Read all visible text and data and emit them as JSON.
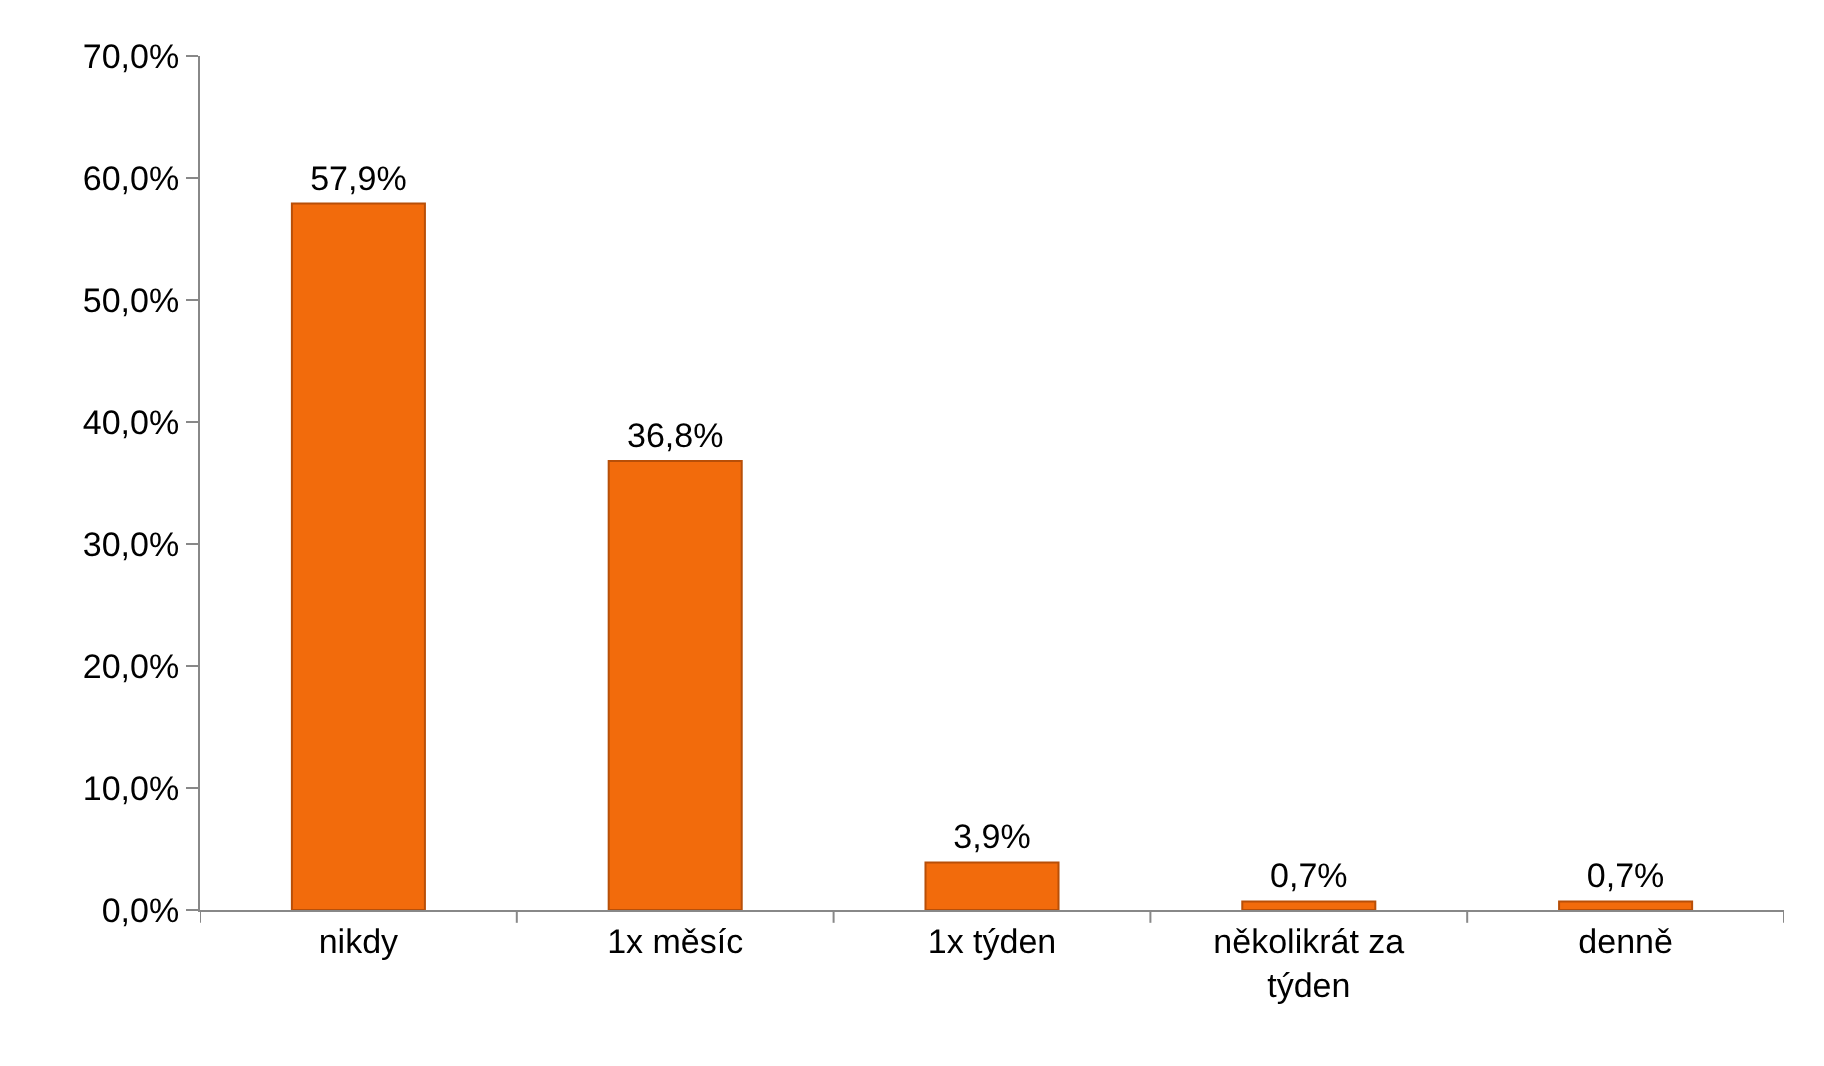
{
  "chart_data": {
    "type": "bar",
    "categories": [
      "nikdy",
      "1x měsíc",
      "1x týden",
      "několikrát za týden",
      "denně"
    ],
    "values": [
      57.9,
      36.8,
      3.9,
      0.7,
      0.7
    ],
    "ylim": [
      0,
      70
    ],
    "yticks": [
      {
        "value": 0,
        "label": "0,0%"
      },
      {
        "value": 10,
        "label": "10,0%"
      },
      {
        "value": 20,
        "label": "20,0%"
      },
      {
        "value": 30,
        "label": "30,0%"
      },
      {
        "value": 40,
        "label": "40,0%"
      },
      {
        "value": 50,
        "label": "50,0%"
      },
      {
        "value": 60,
        "label": "60,0%"
      },
      {
        "value": 70,
        "label": "70,0%"
      }
    ],
    "value_labels": [
      "57,9%",
      "36,8%",
      "3,9%",
      "0,7%",
      "0,7%"
    ],
    "color": "#f26b0c"
  }
}
